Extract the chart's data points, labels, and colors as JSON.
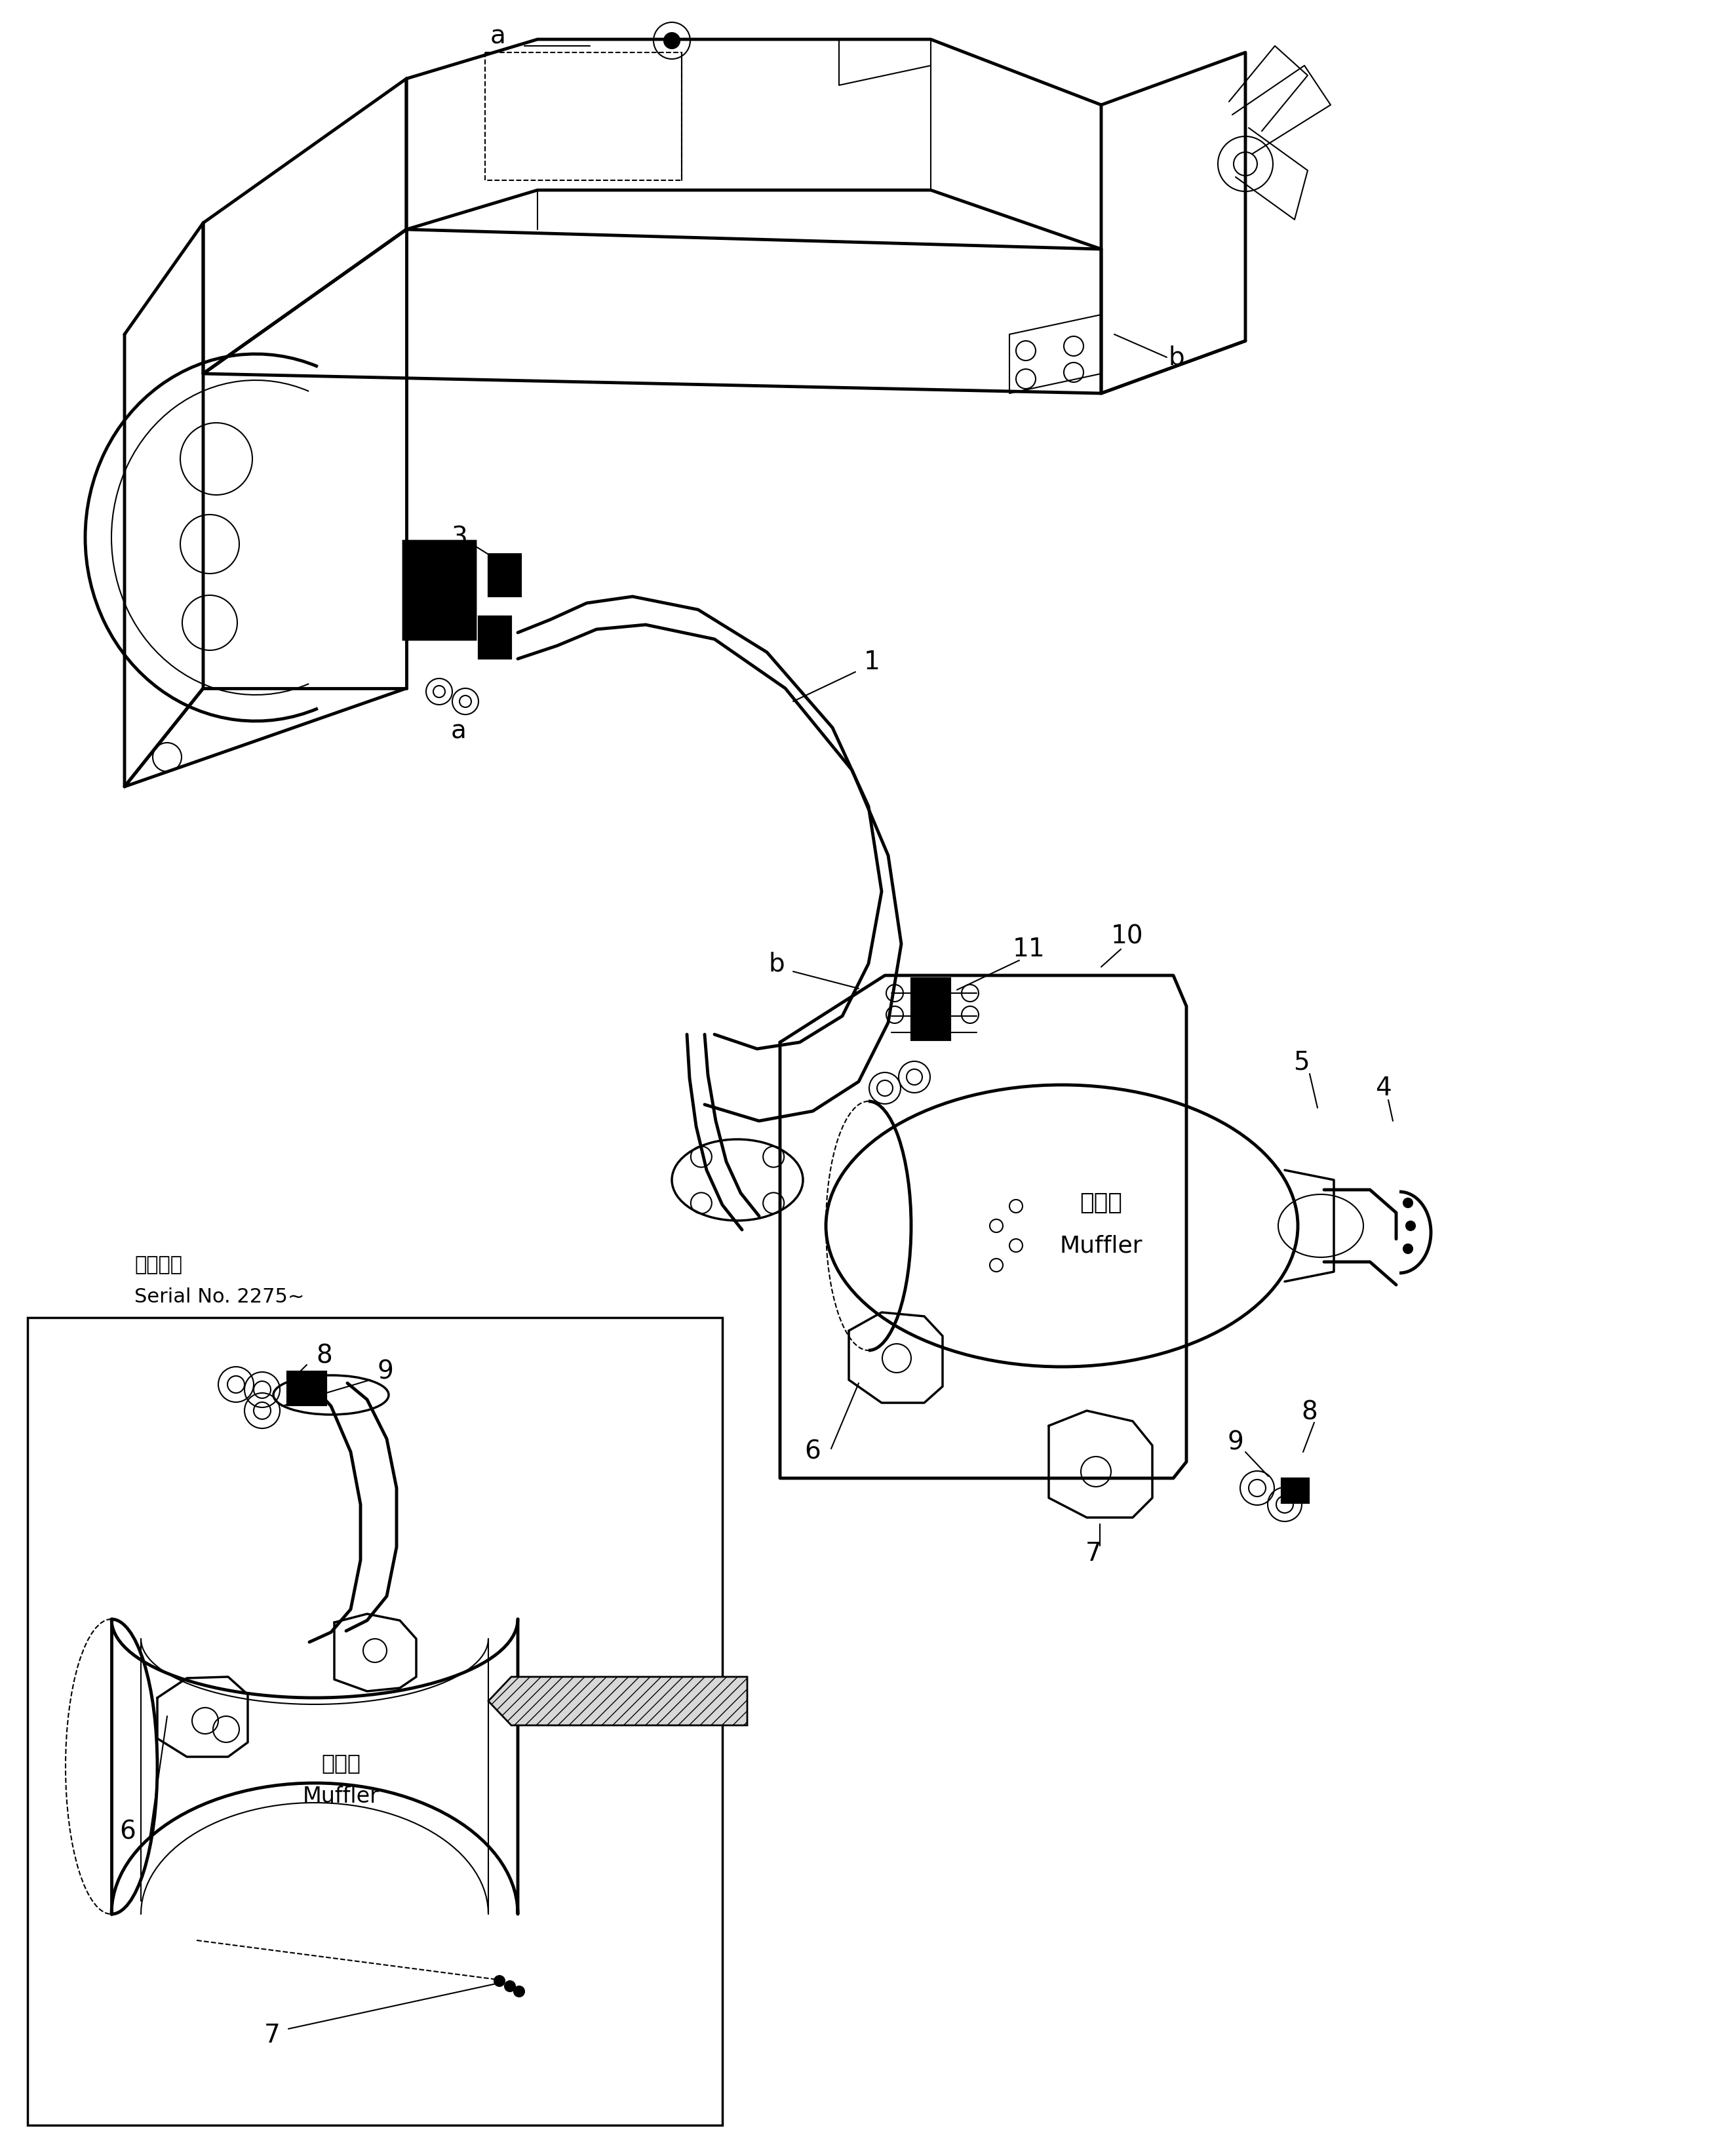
{
  "bg_color": "#ffffff",
  "line_color": "#000000",
  "fig_width": 26.21,
  "fig_height": 32.89,
  "serial_text_jp": "適用号機",
  "serial_text_en": "Serial No. 2275~",
  "muffler_jp": "マフラ",
  "muffler_en": "Muffler",
  "lw_main": 2.5,
  "lw_thin": 1.5,
  "lw_thick": 3.5,
  "fs_label": 28,
  "fs_text": 22
}
